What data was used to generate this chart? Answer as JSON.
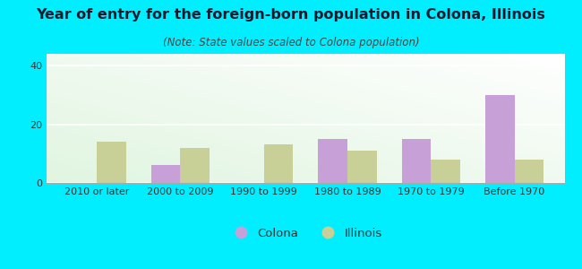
{
  "title": "Year of entry for the foreign-born population in Colona, Illinois",
  "subtitle": "(Note: State values scaled to Colona population)",
  "categories": [
    "2010 or later",
    "2000 to 2009",
    "1990 to 1999",
    "1980 to 1989",
    "1970 to 1979",
    "Before 1970"
  ],
  "colona_values": [
    0,
    6,
    0,
    15,
    15,
    30
  ],
  "illinois_values": [
    14,
    12,
    13,
    11,
    8,
    8
  ],
  "colona_color": "#c8a0d8",
  "illinois_color": "#c8d098",
  "background_outer": "#00eeff",
  "ylim": [
    0,
    44
  ],
  "yticks": [
    0,
    20,
    40
  ],
  "bar_width": 0.35,
  "title_fontsize": 11.5,
  "subtitle_fontsize": 8.5,
  "legend_fontsize": 9.5,
  "axis_fontsize": 8
}
